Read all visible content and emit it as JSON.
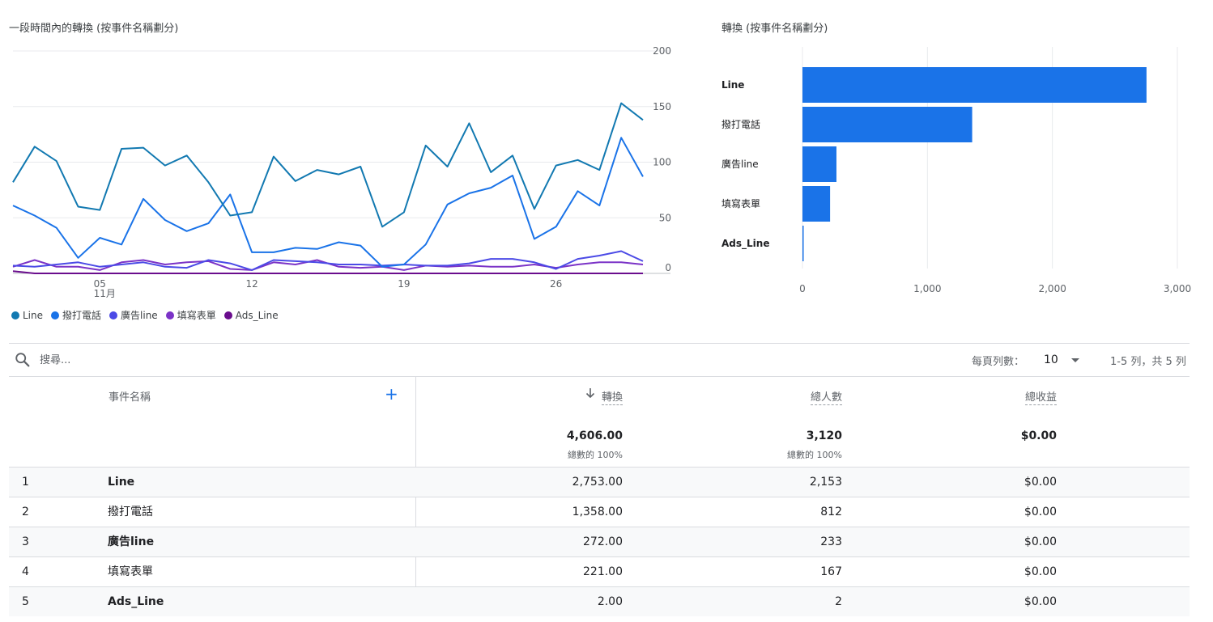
{
  "line_chart": {
    "title": "一段時間內的轉換 (按事件名稱劃分)"
  },
  "bar_chart": {
    "title": "轉換 (按事件名稱劃分)"
  },
  "chart_data": [
    {
      "type": "line",
      "title": "一段時間內的轉換 (按事件名稱劃分)",
      "x": [
        1,
        2,
        3,
        4,
        5,
        6,
        7,
        8,
        9,
        10,
        11,
        12,
        13,
        14,
        15,
        16,
        17,
        18,
        19,
        20,
        21,
        22,
        23,
        24,
        25,
        26,
        27,
        28,
        29,
        30
      ],
      "x_ticks": [
        "05",
        "12",
        "19",
        "26"
      ],
      "x_tick_positions": [
        5,
        12,
        19,
        26
      ],
      "x_sublabel": "11月",
      "y_ticks": [
        "0",
        "50",
        "100",
        "150",
        "200"
      ],
      "ylim": [
        0,
        200
      ],
      "grid": true,
      "legend": "bottom-left",
      "series": [
        {
          "name": "Line",
          "color": "#1279b1",
          "values": [
            82,
            114,
            101,
            60,
            57,
            112,
            113,
            97,
            106,
            82,
            52,
            55,
            105,
            83,
            93,
            89,
            96,
            42,
            55,
            115,
            96,
            135,
            91,
            106,
            58,
            97,
            102,
            93,
            153,
            138
          ]
        },
        {
          "name": "撥打電話",
          "color": "#1a73e8",
          "values": [
            61,
            52,
            41,
            14,
            32,
            26,
            67,
            48,
            38,
            45,
            71,
            19,
            19,
            23,
            22,
            28,
            25,
            6,
            8,
            26,
            62,
            72,
            77,
            88,
            31,
            42,
            74,
            61,
            122,
            87
          ]
        },
        {
          "name": "廣告line",
          "color": "#4b4ae6",
          "values": [
            7,
            6,
            8,
            10,
            6,
            8,
            10,
            6,
            5,
            12,
            9,
            3,
            12,
            11,
            10,
            8,
            8,
            7,
            8,
            7,
            7,
            9,
            13,
            13,
            10,
            4,
            13,
            16,
            20,
            11
          ]
        },
        {
          "name": "填寫表單",
          "color": "#7b33c7",
          "values": [
            6,
            12,
            6,
            6,
            3,
            10,
            12,
            8,
            10,
            11,
            4,
            3,
            10,
            8,
            12,
            6,
            5,
            6,
            3,
            7,
            6,
            7,
            6,
            6,
            8,
            5,
            8,
            10,
            10,
            8
          ]
        },
        {
          "name": "Ads_Line",
          "color": "#6a0d8d",
          "values": [
            2,
            0,
            0,
            0,
            0,
            0,
            0,
            0,
            0,
            0,
            0,
            0,
            0,
            0,
            0,
            0,
            0,
            0,
            0,
            0,
            0,
            0,
            0,
            0,
            0,
            0,
            0,
            0,
            0,
            0
          ]
        }
      ]
    },
    {
      "type": "bar",
      "orientation": "horizontal",
      "title": "轉換 (按事件名稱劃分)",
      "categories": [
        "Line",
        "撥打電話",
        "廣告line",
        "填寫表單",
        "Ads_Line"
      ],
      "values": [
        2753,
        1358,
        272,
        221,
        2
      ],
      "color": "#1a73e8",
      "x_ticks": [
        "0",
        "1,000",
        "2,000",
        "3,000"
      ],
      "xlim": [
        0,
        3000
      ],
      "grid": true
    }
  ],
  "legend": [
    {
      "label": "Line",
      "color": "#1279b1"
    },
    {
      "label": "撥打電話",
      "color": "#1a73e8"
    },
    {
      "label": "廣告line",
      "color": "#4b4ae6"
    },
    {
      "label": "填寫表單",
      "color": "#7b33c7"
    },
    {
      "label": "Ads_Line",
      "color": "#6a0d8d"
    }
  ],
  "toolbar": {
    "search_placeholder": "搜尋...",
    "rows_per_page_label": "每頁列數：",
    "rows_per_page_value": "10",
    "pager_text": "1-5 列，共 5 列"
  },
  "table": {
    "header": {
      "event_col": "事件名稱",
      "add_dimension": "+",
      "metrics": [
        "轉換",
        "總人數",
        "總收益"
      ]
    },
    "totals": {
      "conversions": "4,606.00",
      "conversions_pct": "總數的 100%",
      "users": "3,120",
      "users_pct": "總數的 100%",
      "revenue": "$0.00"
    },
    "rows": [
      {
        "index": "1",
        "name": "Line",
        "conversions": "2,753.00",
        "users": "2,153",
        "revenue": "$0.00"
      },
      {
        "index": "2",
        "name": "撥打電話",
        "conversions": "1,358.00",
        "users": "812",
        "revenue": "$0.00"
      },
      {
        "index": "3",
        "name": "廣告line",
        "conversions": "272.00",
        "users": "233",
        "revenue": "$0.00"
      },
      {
        "index": "4",
        "name": "填寫表單",
        "conversions": "221.00",
        "users": "167",
        "revenue": "$0.00"
      },
      {
        "index": "5",
        "name": "Ads_Line",
        "conversions": "2.00",
        "users": "2",
        "revenue": "$0.00"
      }
    ]
  },
  "icons": {
    "search": "search-icon",
    "dropdown": "caret-down-icon",
    "sort": "arrow-down-icon",
    "add": "plus-icon"
  }
}
